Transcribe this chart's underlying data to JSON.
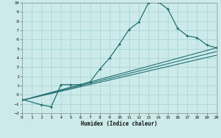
{
  "xlabel": "Humidex (Indice chaleur)",
  "xlim": [
    0,
    20
  ],
  "ylim": [
    -2,
    10
  ],
  "xticks": [
    0,
    1,
    2,
    3,
    4,
    5,
    6,
    7,
    8,
    9,
    10,
    11,
    12,
    13,
    14,
    15,
    16,
    17,
    18,
    19,
    20
  ],
  "yticks": [
    -2,
    -1,
    0,
    1,
    2,
    3,
    4,
    5,
    6,
    7,
    8,
    9,
    10
  ],
  "bg_color": "#cceaea",
  "grid_color": "#aad4d4",
  "line_color": "#1a6b6b",
  "curve1_x": [
    0,
    2,
    3,
    4,
    5,
    6,
    7,
    8,
    9,
    10,
    11,
    12,
    13,
    14,
    15,
    16,
    17,
    18,
    19,
    20
  ],
  "curve1_y": [
    -0.5,
    -1.1,
    -1.3,
    1.1,
    1.1,
    1.1,
    1.4,
    2.8,
    4.0,
    5.5,
    7.1,
    7.9,
    10.0,
    10.1,
    9.3,
    7.2,
    6.4,
    6.2,
    5.4,
    5.1
  ],
  "line2_x": [
    0,
    20
  ],
  "line2_y": [
    -0.6,
    5.1
  ],
  "line3_x": [
    0,
    20
  ],
  "line3_y": [
    -0.6,
    4.7
  ],
  "line4_x": [
    0,
    20
  ],
  "line4_y": [
    -0.6,
    4.3
  ]
}
